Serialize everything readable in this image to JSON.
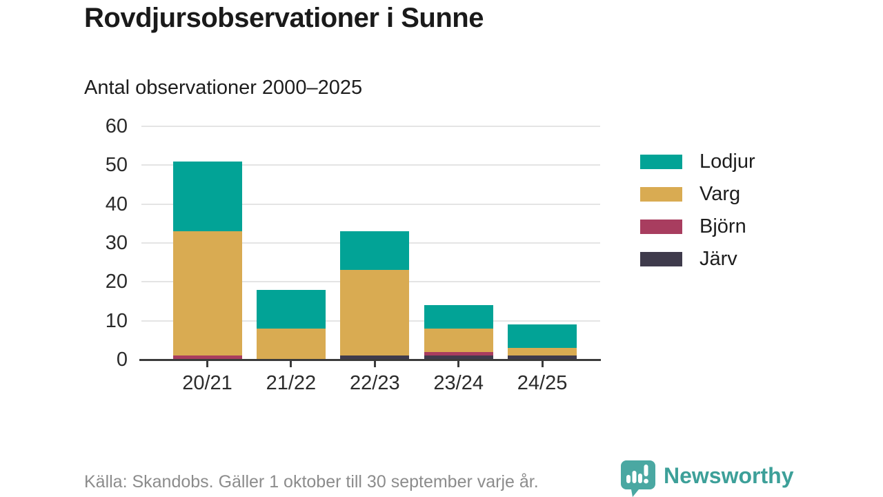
{
  "header": {
    "title": "Rovdjursobservationer i Sunne",
    "subtitle": "Antal observationer 2000–2025"
  },
  "chart_data": {
    "type": "bar",
    "stacked": true,
    "title": "Rovdjursobservationer i Sunne",
    "subtitle": "Antal observationer 2000–2025",
    "xlabel": "",
    "ylabel": "",
    "categories": [
      "20/21",
      "21/22",
      "22/23",
      "23/24",
      "24/25"
    ],
    "series": [
      {
        "name": "Lodjur",
        "color": "#02a396",
        "values": [
          18,
          10,
          10,
          6,
          6
        ]
      },
      {
        "name": "Varg",
        "color": "#d9ab52",
        "values": [
          32,
          8,
          22,
          6,
          2
        ]
      },
      {
        "name": "Björn",
        "color": "#a83d5f",
        "values": [
          1,
          0,
          0,
          1,
          0
        ]
      },
      {
        "name": "Järv",
        "color": "#3f3b4c",
        "values": [
          0,
          0,
          1,
          1,
          1
        ]
      }
    ],
    "stack_order_bottom_to_top": [
      "Järv",
      "Björn",
      "Varg",
      "Lodjur"
    ],
    "totals": [
      51,
      18,
      33,
      14,
      9
    ],
    "ylim": [
      0,
      60
    ],
    "y_ticks": [
      0,
      10,
      20,
      30,
      40,
      50,
      60
    ],
    "grid": "horizontal",
    "legend_position": "right"
  },
  "footer": {
    "source": "Källa: Skandobs. Gäller 1 oktober till 30 september varje år.",
    "brand": "Newsworthy"
  },
  "colors": {
    "axis": "#3b3b3b",
    "gridline": "#e4e4e4",
    "title_text": "#1a1a1a",
    "tick_text": "#2b2b2b",
    "muted_text": "#8c8c8c",
    "brand_text": "#3da099",
    "brand_bubble": "#4aa8a2"
  },
  "icons": {
    "brand_logo": "newsworthy-speech-bubble-chart-icon"
  }
}
